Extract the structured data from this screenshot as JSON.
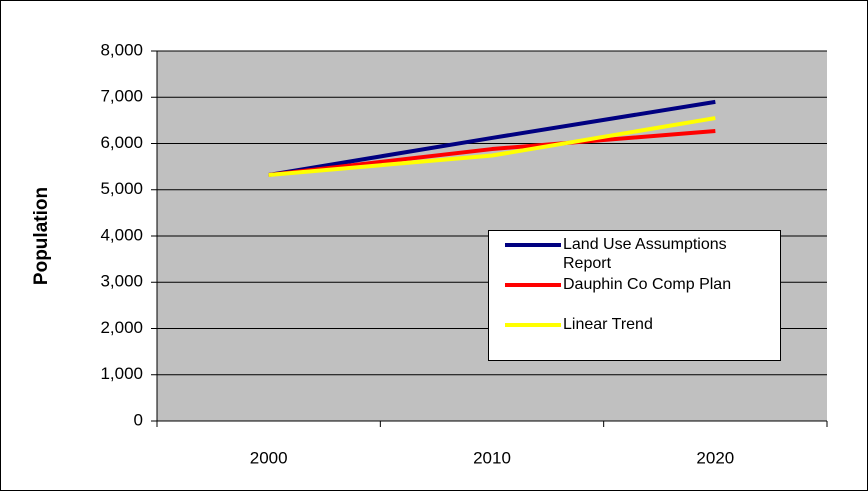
{
  "chart_data": {
    "type": "line",
    "y_label": "Population",
    "categories": [
      "2000",
      "2010",
      "2020"
    ],
    "series": [
      {
        "name": "Land Use Assumptions Report",
        "color": "#000080",
        "values": [
          5320,
          6120,
          6900
        ]
      },
      {
        "name": "Dauphin Co Comp Plan",
        "color": "#ff0000",
        "values": [
          5320,
          5880,
          6270
        ]
      },
      {
        "name": "Linear Trend",
        "color": "#ffff00",
        "values": [
          5320,
          5740,
          6550
        ]
      }
    ],
    "ylim": [
      0,
      8000
    ],
    "yticks": [
      0,
      {
        "value": 1000,
        "label": "1,000"
      },
      {
        "value": 2000,
        "label": "2,000"
      },
      {
        "value": 3000,
        "label": "3,000"
      },
      {
        "value": 4000,
        "label": "4,000"
      },
      {
        "value": 5000,
        "label": "5,000"
      },
      {
        "value": 6000,
        "label": "6,000"
      },
      {
        "value": 7000,
        "label": "7,000"
      },
      {
        "value": 8000,
        "label": "8,000"
      }
    ],
    "grid": true
  }
}
